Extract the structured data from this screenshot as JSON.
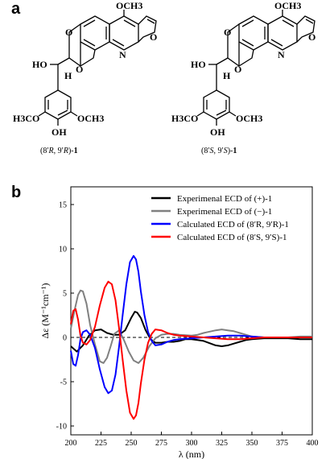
{
  "panels": {
    "a": "a",
    "b": "b"
  },
  "structures": [
    {
      "top_group": "OCH3",
      "ho_label": "HO",
      "h_label": "H",
      "n_label": "N",
      "ring_o1": "O",
      "ring_o2": "O",
      "furan_o": "O",
      "left_methoxy": "H3CO",
      "right_methoxy": "OCH3",
      "hydroxy": "OH",
      "caption_pre": "(8′",
      "caption_d1": "R",
      "caption_mid": ", 9′",
      "caption_d2": "R",
      "caption_post": ")-",
      "caption_num": "1"
    },
    {
      "top_group": "OCH3",
      "ho_label": "HO",
      "h_label": "H",
      "n_label": "N",
      "ring_o1": "O",
      "ring_o2": "O",
      "furan_o": "O",
      "left_methoxy": "H3CO",
      "right_methoxy": "OCH3",
      "hydroxy": "OH",
      "caption_pre": "(8′",
      "caption_d1": "S",
      "caption_mid": ", 9′",
      "caption_d2": "S",
      "caption_post": ")-",
      "caption_num": "1"
    }
  ],
  "chart_data": {
    "type": "line",
    "xlabel": "λ (nm)",
    "ylabel": "Δε (M⁻¹cm⁻¹)",
    "xlim": [
      200,
      400
    ],
    "ylim": [
      -11,
      17
    ],
    "xticks": [
      200,
      225,
      250,
      275,
      300,
      325,
      350,
      375,
      400
    ],
    "yticks": [
      -10,
      -5,
      0,
      5,
      10,
      15
    ],
    "zero_line": "dashed",
    "legend_position": "top-right",
    "series": [
      {
        "name": "Experimenal ECD of (+)-1",
        "color": "#000000",
        "x": [
          200,
          205,
          210,
          215,
          220,
          225,
          230,
          235,
          240,
          245,
          250,
          253,
          255,
          258,
          262,
          266,
          270,
          275,
          280,
          285,
          290,
          295,
          300,
          305,
          310,
          320,
          325,
          330,
          335,
          340,
          345,
          350,
          360,
          370,
          380,
          390,
          400
        ],
        "y": [
          -1.0,
          -1.6,
          -0.9,
          0.2,
          0.8,
          0.9,
          0.5,
          0.3,
          0.3,
          0.8,
          2.2,
          2.9,
          2.8,
          2.2,
          0.8,
          -0.2,
          -0.6,
          -0.6,
          -0.5,
          -0.5,
          -0.4,
          -0.2,
          -0.2,
          -0.3,
          -0.4,
          -0.9,
          -1.0,
          -0.9,
          -0.7,
          -0.5,
          -0.3,
          -0.2,
          -0.1,
          -0.1,
          -0.1,
          -0.2,
          -0.2
        ]
      },
      {
        "name": "Experimenal ECD of (−)-1",
        "color": "#808080",
        "x": [
          200,
          203,
          206,
          208,
          210,
          213,
          216,
          220,
          224,
          227,
          230,
          233,
          236,
          240,
          244,
          248,
          252,
          256,
          260,
          265,
          270,
          275,
          280,
          285,
          290,
          300,
          305,
          310,
          320,
          325,
          330,
          335,
          340,
          345,
          350,
          360,
          370,
          380,
          390,
          400
        ],
        "y": [
          1.0,
          3.0,
          4.8,
          5.3,
          5.2,
          3.8,
          1.4,
          -0.8,
          -2.7,
          -2.9,
          -2.3,
          -1.0,
          0.4,
          0.8,
          -0.3,
          -1.6,
          -2.6,
          -2.9,
          -2.3,
          -1.0,
          -0.1,
          0.3,
          0.4,
          0.4,
          0.3,
          0.2,
          0.3,
          0.5,
          0.8,
          0.9,
          0.8,
          0.7,
          0.5,
          0.3,
          0.1,
          0.0,
          0.0,
          0.0,
          0.1,
          0.1
        ]
      },
      {
        "name": "Calculated ECD of (8′R, 9′R)-1",
        "color": "#0000ff",
        "x": [
          200,
          202,
          204,
          206,
          208,
          210,
          213,
          216,
          220,
          224,
          228,
          231,
          234,
          237,
          240,
          243,
          246,
          249,
          252,
          254,
          256,
          258,
          261,
          264,
          267,
          270,
          275,
          280,
          285,
          290,
          300,
          310,
          320,
          330,
          340,
          350,
          360,
          370,
          380,
          390,
          400
        ],
        "y": [
          -1.5,
          -3.0,
          -3.2,
          -2.0,
          -0.2,
          0.6,
          0.8,
          0.3,
          -1.2,
          -3.6,
          -5.6,
          -6.3,
          -6.0,
          -4.2,
          -1.0,
          2.6,
          6.0,
          8.5,
          9.2,
          8.8,
          7.4,
          5.2,
          2.5,
          0.6,
          -0.4,
          -0.9,
          -0.8,
          -0.5,
          -0.3,
          -0.2,
          -0.1,
          0.0,
          0.1,
          0.2,
          0.2,
          0.1,
          0.0,
          0.0,
          0.0,
          0.0,
          0.0
        ]
      },
      {
        "name": "Calculated ECD of (8′S, 9′S)-1",
        "color": "#ff0000",
        "x": [
          200,
          202,
          204,
          206,
          208,
          210,
          213,
          216,
          220,
          224,
          228,
          231,
          234,
          237,
          240,
          243,
          246,
          249,
          252,
          254,
          256,
          258,
          261,
          264,
          267,
          270,
          275,
          280,
          285,
          290,
          300,
          310,
          320,
          330,
          340,
          350,
          360,
          370,
          380,
          390,
          400
        ],
        "y": [
          1.5,
          3.0,
          3.2,
          2.0,
          0.2,
          -0.6,
          -0.8,
          -0.3,
          1.2,
          3.6,
          5.6,
          6.3,
          6.0,
          4.2,
          1.0,
          -2.6,
          -6.0,
          -8.5,
          -9.2,
          -8.8,
          -7.4,
          -5.2,
          -2.5,
          -0.6,
          0.4,
          0.9,
          0.8,
          0.5,
          0.3,
          0.2,
          0.1,
          0.0,
          -0.1,
          -0.2,
          -0.2,
          -0.1,
          0.0,
          0.0,
          0.0,
          0.0,
          0.0
        ]
      }
    ]
  }
}
